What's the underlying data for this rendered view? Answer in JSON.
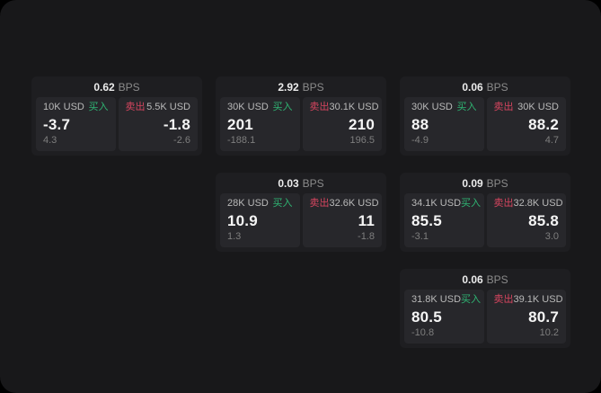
{
  "labels": {
    "bps_unit": "BPS",
    "buy": "买入",
    "sell": "卖出"
  },
  "colors": {
    "buy_green": "#2fb573",
    "sell_red": "#d6455f",
    "surface": "#18181a",
    "card": "#1e1e21",
    "panel": "#27272b"
  },
  "cards": [
    {
      "bps": "0.62",
      "buy": {
        "amount": "10K USD",
        "value": "-3.7",
        "delta": "4.3"
      },
      "sell": {
        "amount": "5.5K USD",
        "value": "-1.8",
        "delta": "-2.6"
      }
    },
    {
      "bps": "2.92",
      "buy": {
        "amount": "30K USD",
        "value": "201",
        "delta": "-188.1"
      },
      "sell": {
        "amount": "30.1K USD",
        "value": "210",
        "delta": "196.5"
      }
    },
    {
      "bps": "0.06",
      "buy": {
        "amount": "30K USD",
        "value": "88",
        "delta": "-4.9"
      },
      "sell": {
        "amount": "30K USD",
        "value": "88.2",
        "delta": "4.7"
      }
    },
    {
      "bps": "0.03",
      "buy": {
        "amount": "28K USD",
        "value": "10.9",
        "delta": "1.3"
      },
      "sell": {
        "amount": "32.6K USD",
        "value": "11",
        "delta": "-1.8"
      }
    },
    {
      "bps": "0.09",
      "buy": {
        "amount": "34.1K USD",
        "value": "85.5",
        "delta": "-3.1"
      },
      "sell": {
        "amount": "32.8K USD",
        "value": "85.8",
        "delta": "3.0"
      }
    },
    {
      "bps": "0.06",
      "buy": {
        "amount": "31.8K USD",
        "value": "80.5",
        "delta": "-10.8"
      },
      "sell": {
        "amount": "39.1K USD",
        "value": "80.7",
        "delta": "10.2"
      }
    }
  ]
}
